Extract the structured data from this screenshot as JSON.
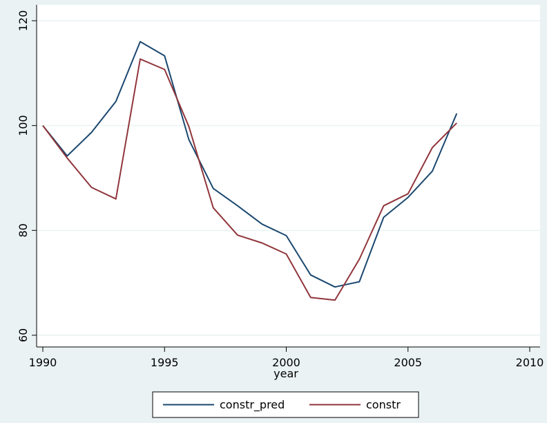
{
  "chart_data": {
    "type": "line",
    "xlabel": "year",
    "ylabel": "",
    "title": "",
    "xlim": [
      1990,
      2010
    ],
    "ylim": [
      60,
      120
    ],
    "xticks": [
      1990,
      1995,
      2000,
      2005,
      2010
    ],
    "yticks": [
      60,
      80,
      100,
      120
    ],
    "xtick_labels": [
      "1990",
      "1995",
      "2000",
      "2005",
      "2010"
    ],
    "ytick_labels": [
      "60",
      "80",
      "100",
      "120"
    ],
    "grid": "horizontal",
    "legend_position": "bottom",
    "x": [
      1990,
      1991,
      1992,
      1993,
      1994,
      1995,
      1996,
      1997,
      1998,
      1999,
      2000,
      2001,
      2002,
      2003,
      2004,
      2005,
      2006,
      2007
    ],
    "series": [
      {
        "name": "constr_pred",
        "color": "#1a476f",
        "values": [
          100,
          94.2,
          98.7,
          104.6,
          116.0,
          113.3,
          97.3,
          88.0,
          84.7,
          81.2,
          79.0,
          71.5,
          69.2,
          70.2,
          82.5,
          86.3,
          91.3,
          102.3
        ]
      },
      {
        "name": "constr",
        "color": "#90353b",
        "values": [
          100,
          93.8,
          88.2,
          86.0,
          112.7,
          110.7,
          99.8,
          84.3,
          79.1,
          77.6,
          75.5,
          67.2,
          66.7,
          74.5,
          84.7,
          87.0,
          95.8,
          100.5
        ]
      }
    ]
  }
}
